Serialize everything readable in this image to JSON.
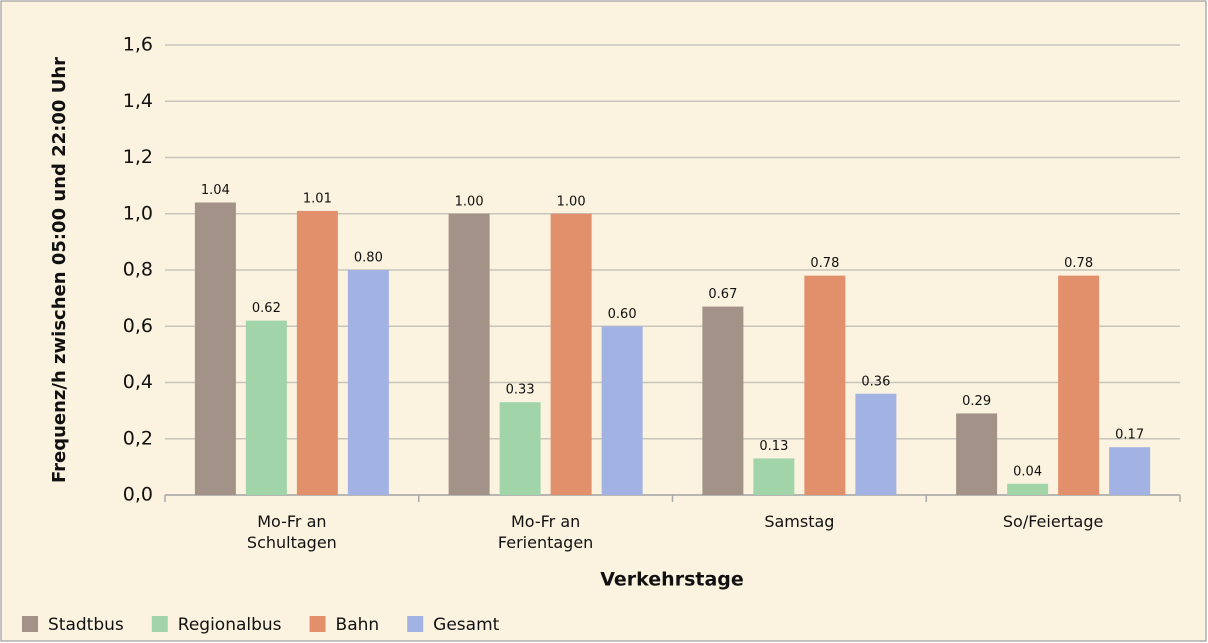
{
  "chart_data": {
    "type": "bar",
    "x_label": "Verkehrstage",
    "y_label": "Frequenz/h zwischen 05:00 und 22:00 Uhr",
    "categories": [
      "Mo-Fr an\nSchultagen",
      "Mo-Fr an\nFerientagen",
      "Samstag",
      "So/Feiertage"
    ],
    "series": [
      {
        "name": "Stadtbus",
        "color": "#a39287",
        "values": [
          1.04,
          1.0,
          0.67,
          0.29
        ],
        "value_labels": [
          "1.04",
          "1.00",
          "0.67",
          "0.29"
        ]
      },
      {
        "name": "Regionalbus",
        "color": "#a2d4a9",
        "values": [
          0.62,
          0.33,
          0.13,
          0.04
        ],
        "value_labels": [
          "0.62",
          "0.33",
          "0.13",
          "0.04"
        ]
      },
      {
        "name": "Bahn",
        "color": "#e2906c",
        "values": [
          1.01,
          1.0,
          0.78,
          0.78
        ],
        "value_labels": [
          "1.01",
          "1.00",
          "0.78",
          "0.78"
        ]
      },
      {
        "name": "Gesamt",
        "color": "#a2b2e2",
        "values": [
          0.8,
          0.6,
          0.36,
          0.17
        ],
        "value_labels": [
          "0.80",
          "0.60",
          "0.36",
          "0.17"
        ]
      }
    ],
    "ylim": [
      0,
      1.6
    ],
    "yticks": [
      {
        "value": 0,
        "label": "0,0"
      },
      {
        "value": 0.2,
        "label": "0,2"
      },
      {
        "value": 0.4,
        "label": "0,4"
      },
      {
        "value": 0.6,
        "label": "0,6"
      },
      {
        "value": 0.8,
        "label": "0,8"
      },
      {
        "value": 1.0,
        "label": "1,0"
      },
      {
        "value": 1.2,
        "label": "1,2"
      },
      {
        "value": 1.4,
        "label": "1,4"
      },
      {
        "value": 1.6,
        "label": "1,6"
      }
    ],
    "grid": true,
    "legend": "bottom-left"
  }
}
